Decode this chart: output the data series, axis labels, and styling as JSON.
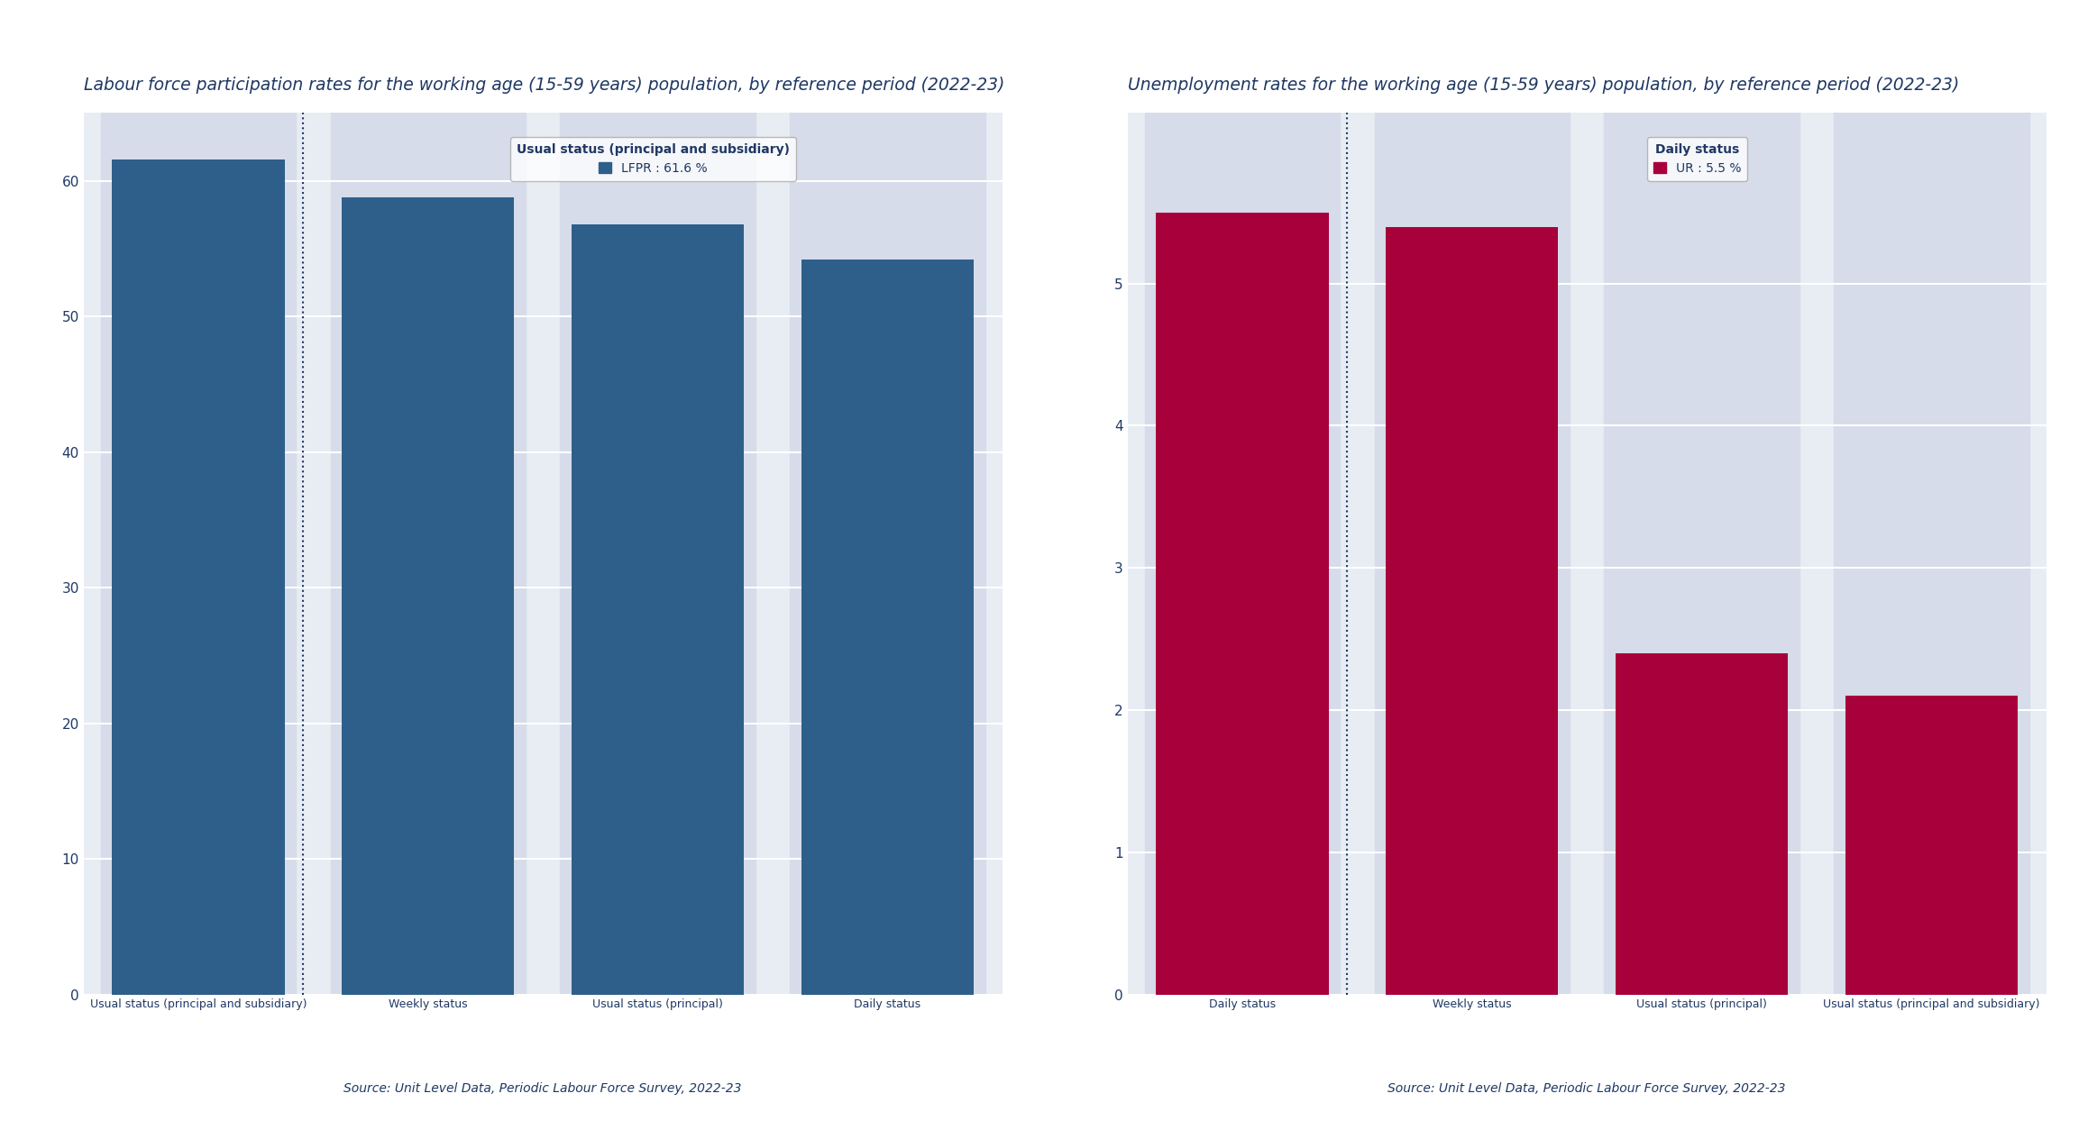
{
  "left_title": "Labour force participation rates for the working age (15-59 years) population, by reference period (2022-23)",
  "right_title": "Unemployment rates for the working age (15-59 years) population, by reference period (2022-23)",
  "source_text": "Source: Unit Level Data, Periodic Labour Force Survey, 2022-23",
  "lfpr_categories": [
    "Usual status (principal and subsidiary)",
    "Weekly status",
    "Usual status (principal)",
    "Daily status"
  ],
  "lfpr_values": [
    61.6,
    58.8,
    56.8,
    54.2
  ],
  "lfpr_bar_color": "#2E5F8A",
  "lfpr_highlight_index": 0,
  "lfpr_legend_title": "Usual status (principal and subsidiary)",
  "lfpr_legend_label": "LFPR : 61.6 %",
  "lfpr_ylim": [
    0,
    65
  ],
  "lfpr_yticks": [
    0,
    10,
    20,
    30,
    40,
    50,
    60
  ],
  "lfpr_strip_color": "#D6DCE9",
  "ur_categories": [
    "Daily status",
    "Weekly status",
    "Usual status (principal)",
    "Usual status (principal and subsidiary)"
  ],
  "ur_values": [
    5.5,
    5.4,
    2.4,
    2.1
  ],
  "ur_bar_color": "#A8003B",
  "ur_highlight_index": 0,
  "ur_legend_title": "Daily status",
  "ur_legend_label": "UR : 5.5 %",
  "ur_ylim": [
    0,
    6.2
  ],
  "ur_yticks": [
    0,
    1,
    2,
    3,
    4,
    5
  ],
  "ur_strip_color": "#D6DCE9",
  "title_color": "#1F3864",
  "title_fontsize": 13.5,
  "tick_label_color": "#1F3864",
  "source_color": "#1F3864",
  "plot_bg_color": "#E8EDF4",
  "strip_bg_color": "#D6DCE9",
  "outer_bg": "#FFFFFF",
  "dotted_line_color": "#1F3864",
  "legend_fontsize": 10,
  "axis_label_fontsize": 9,
  "ytick_fontsize": 11,
  "source_fontsize": 10,
  "bar_width": 0.75
}
